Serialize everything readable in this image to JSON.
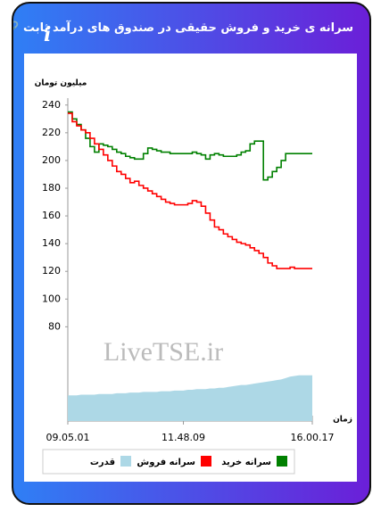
{
  "header": {
    "title": "سرانه ی خرید و فروش حقیقی در صندوق های درآمد ثابت",
    "info": "i"
  },
  "chart_data": {
    "type": "line",
    "y_label": "میلیون تومان",
    "x_label": "زمان",
    "watermark": "LiveTSE.ir",
    "categories": [
      "09.05.01",
      null,
      null,
      null,
      null,
      null,
      null,
      null,
      null,
      null,
      null,
      null,
      null,
      null,
      null,
      null,
      null,
      null,
      null,
      null,
      null,
      null,
      null,
      null,
      null,
      null,
      "11.48.09",
      null,
      null,
      null,
      null,
      null,
      null,
      null,
      null,
      null,
      null,
      null,
      null,
      null,
      null,
      null,
      null,
      null,
      null,
      null,
      null,
      null,
      null,
      null,
      null,
      null,
      null,
      null,
      null,
      "16.00.17"
    ],
    "series": [
      {
        "name": "سرانه خرید",
        "color": "#008000",
        "step": true,
        "values": [
          235,
          230,
          226,
          222,
          216,
          210,
          206,
          212,
          211,
          210,
          208,
          206,
          205,
          203,
          202,
          201,
          201,
          205,
          209,
          208,
          207,
          206,
          206,
          205,
          205,
          205,
          205,
          205,
          206,
          205,
          204,
          201,
          204,
          205,
          204,
          203,
          203,
          203,
          204,
          206,
          207,
          212,
          214,
          214,
          186,
          188,
          192,
          195,
          200,
          205,
          205,
          205,
          205,
          205,
          205,
          205
        ]
      },
      {
        "name": "سرانه فروش",
        "color": "#ff0000",
        "step": true,
        "values": [
          234,
          228,
          225,
          222,
          220,
          216,
          212,
          208,
          204,
          200,
          196,
          192,
          190,
          187,
          184,
          185,
          182,
          180,
          178,
          176,
          174,
          172,
          170,
          169,
          168,
          168,
          168,
          169,
          171,
          170,
          167,
          162,
          157,
          152,
          150,
          147,
          145,
          143,
          141,
          140,
          139,
          137,
          135,
          133,
          130,
          126,
          124,
          122,
          122,
          122,
          123,
          122,
          122,
          122,
          122,
          122
        ]
      },
      {
        "name": "قدرت",
        "color": "#add8e6",
        "area": true,
        "values": [
          30.5,
          30.5,
          30.5,
          31,
          31,
          31,
          31,
          31.5,
          31.5,
          31.5,
          31.5,
          32,
          32,
          32,
          32.5,
          32.5,
          32.5,
          33,
          33,
          33,
          33,
          33.5,
          33.5,
          33.5,
          34,
          34,
          34,
          34.5,
          34.5,
          35,
          35,
          35,
          35.5,
          35.5,
          36,
          36,
          36.5,
          37,
          37.5,
          38,
          38,
          38.5,
          39,
          39.5,
          40,
          40.5,
          41,
          41.5,
          42,
          43,
          44,
          44.5,
          45,
          45,
          45,
          45
        ]
      }
    ],
    "ylim": [
      12,
      245
    ],
    "yticks": [
      80,
      100,
      120,
      140,
      160,
      180,
      200,
      220,
      240
    ]
  }
}
